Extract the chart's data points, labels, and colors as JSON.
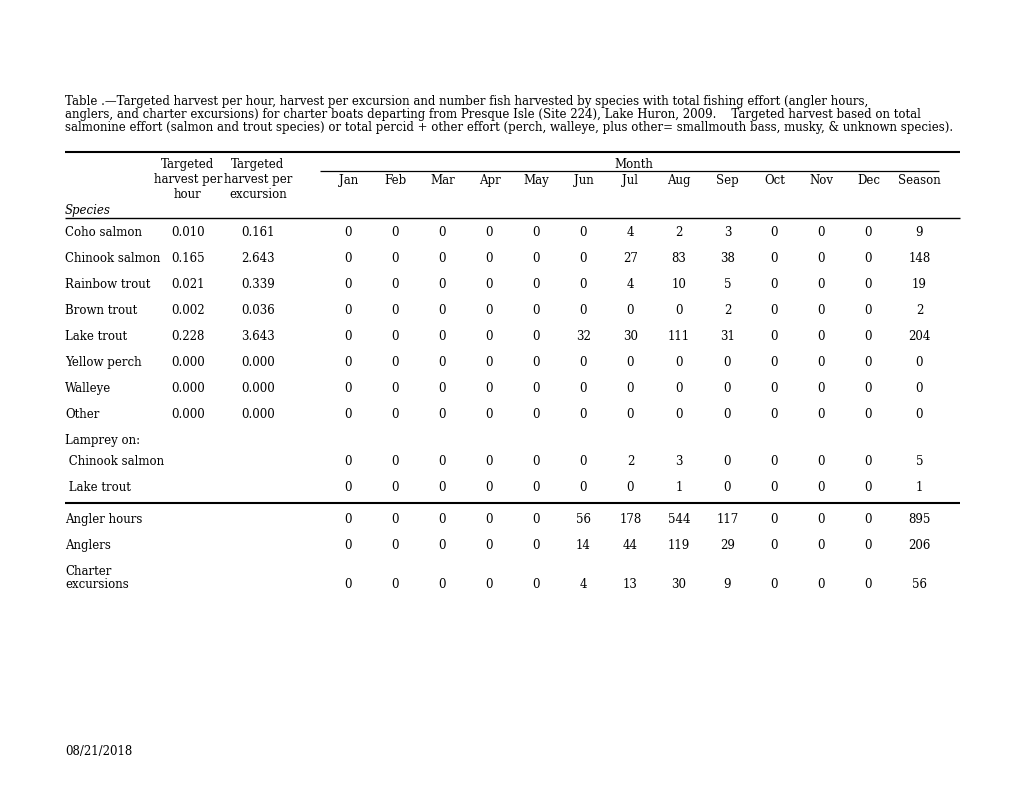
{
  "caption_line1": "Table .—Targeted harvest per hour, harvest per excursion and number fish harvested by species with total fishing effort (angler hours,",
  "caption_line2": "anglers, and charter excursions) for charter boats departing from Presque Isle (Site 224), Lake Huron, 2009.    Targeted harvest based on total",
  "caption_line3": "salmonine effort (salmon and trout species) or total percid + other effort (perch, walleye, plus other= smallmouth bass, musky, & unknown species).",
  "date_label": "08/21/2018",
  "col_headers_targeted_hour": [
    "Targeted",
    "harvest per",
    "hour"
  ],
  "col_headers_targeted_excursion": [
    "Targeted",
    "harvest per",
    "excursion"
  ],
  "month_label": "Month",
  "months": [
    "Jan",
    "Feb",
    "Mar",
    "Apr",
    "May",
    "Jun",
    "Jul",
    "Aug",
    "Sep",
    "Oct",
    "Nov",
    "Dec",
    "Season"
  ],
  "rows": [
    {
      "species": "Coho salmon",
      "th": "0.010",
      "te": "0.161",
      "vals": [
        0,
        0,
        0,
        0,
        0,
        0,
        4,
        2,
        3,
        0,
        0,
        0,
        9
      ],
      "type": "normal"
    },
    {
      "species": "Chinook salmon",
      "th": "0.165",
      "te": "2.643",
      "vals": [
        0,
        0,
        0,
        0,
        0,
        0,
        27,
        83,
        38,
        0,
        0,
        0,
        148
      ],
      "type": "normal"
    },
    {
      "species": "Rainbow trout",
      "th": "0.021",
      "te": "0.339",
      "vals": [
        0,
        0,
        0,
        0,
        0,
        0,
        4,
        10,
        5,
        0,
        0,
        0,
        19
      ],
      "type": "normal"
    },
    {
      "species": "Brown trout",
      "th": "0.002",
      "te": "0.036",
      "vals": [
        0,
        0,
        0,
        0,
        0,
        0,
        0,
        0,
        2,
        0,
        0,
        0,
        2
      ],
      "type": "normal"
    },
    {
      "species": "Lake trout",
      "th": "0.228",
      "te": "3.643",
      "vals": [
        0,
        0,
        0,
        0,
        0,
        32,
        30,
        111,
        31,
        0,
        0,
        0,
        204
      ],
      "type": "normal"
    },
    {
      "species": "Yellow perch",
      "th": "0.000",
      "te": "0.000",
      "vals": [
        0,
        0,
        0,
        0,
        0,
        0,
        0,
        0,
        0,
        0,
        0,
        0,
        0
      ],
      "type": "normal"
    },
    {
      "species": "Walleye",
      "th": "0.000",
      "te": "0.000",
      "vals": [
        0,
        0,
        0,
        0,
        0,
        0,
        0,
        0,
        0,
        0,
        0,
        0,
        0
      ],
      "type": "normal"
    },
    {
      "species": "Other",
      "th": "0.000",
      "te": "0.000",
      "vals": [
        0,
        0,
        0,
        0,
        0,
        0,
        0,
        0,
        0,
        0,
        0,
        0,
        0
      ],
      "type": "normal"
    },
    {
      "species": "Lamprey on:",
      "th": "",
      "te": "",
      "vals": null,
      "type": "header"
    },
    {
      "species": " Chinook salmon",
      "th": "",
      "te": "",
      "vals": [
        0,
        0,
        0,
        0,
        0,
        0,
        2,
        3,
        0,
        0,
        0,
        0,
        5
      ],
      "type": "indent"
    },
    {
      "species": " Lake trout",
      "th": "",
      "te": "",
      "vals": [
        0,
        0,
        0,
        0,
        0,
        0,
        0,
        1,
        0,
        0,
        0,
        0,
        1
      ],
      "type": "indent",
      "thick_below": true
    },
    {
      "species": "Angler hours",
      "th": "",
      "te": "",
      "vals": [
        0,
        0,
        0,
        0,
        0,
        56,
        178,
        544,
        117,
        0,
        0,
        0,
        895
      ],
      "type": "normal"
    },
    {
      "species": "Anglers",
      "th": "",
      "te": "",
      "vals": [
        0,
        0,
        0,
        0,
        0,
        14,
        44,
        119,
        29,
        0,
        0,
        0,
        206
      ],
      "type": "normal"
    },
    {
      "species": "Charter\nexcursions",
      "th": "",
      "te": "",
      "vals": [
        0,
        0,
        0,
        0,
        0,
        4,
        13,
        30,
        9,
        0,
        0,
        0,
        56
      ],
      "type": "charter"
    }
  ],
  "font_size": 8.5,
  "font_family": "DejaVu Serif",
  "bg": "#ffffff",
  "fg": "#000000"
}
